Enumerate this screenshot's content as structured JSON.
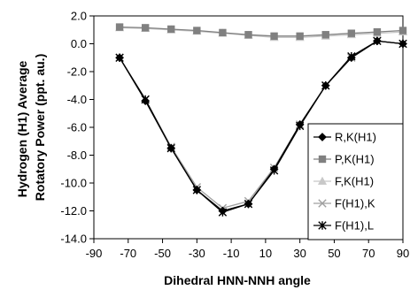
{
  "chart_data": {
    "type": "line",
    "title": "",
    "xlabel": "Dihedral HNN-NNH angle",
    "ylabel_lines": [
      "Hydrogen (H1) Average",
      "Rotatory Power (ppt. au.)"
    ],
    "xlim": [
      -90,
      90
    ],
    "ylim": [
      -14,
      2
    ],
    "x_ticks": [
      -90,
      -70,
      -50,
      -30,
      -10,
      10,
      30,
      50,
      70,
      90
    ],
    "y_ticks": [
      2,
      0,
      -2,
      -4,
      -6,
      -8,
      -10,
      -12,
      -14
    ],
    "y_tick_labels": [
      "2.0",
      "0.0",
      "-2.0",
      "-4.0",
      "-6.0",
      "-8.0",
      "-10.0",
      "-12.0",
      "-14.0"
    ],
    "grid": false,
    "legend": "right",
    "series": [
      {
        "name": "R,K(H1)",
        "color": "#000000",
        "marker": "diamond",
        "x": [
          -75,
          -60,
          -45,
          -30,
          -15,
          0,
          15,
          30,
          45,
          60,
          75,
          90
        ],
        "y": [
          -1.0,
          -4.1,
          -7.5,
          -10.5,
          -12.0,
          -11.5,
          -9.0,
          -5.8,
          -3.0,
          -1.0,
          0.2,
          0.0
        ]
      },
      {
        "name": "P,K(H1)",
        "color": "#808080",
        "marker": "square",
        "x": [
          -75,
          -60,
          -45,
          -30,
          -15,
          0,
          15,
          30,
          45,
          60,
          75,
          90
        ],
        "y": [
          1.2,
          1.15,
          1.05,
          0.95,
          0.8,
          0.65,
          0.55,
          0.55,
          0.65,
          0.75,
          0.85,
          0.95
        ]
      },
      {
        "name": "F,K(H1)",
        "color": "#c8c8c8",
        "marker": "triangle",
        "x": [
          -75,
          -60,
          -45,
          -30,
          -15,
          0,
          15,
          30,
          45,
          60,
          75,
          90
        ],
        "y": [
          1.15,
          1.1,
          1.0,
          0.9,
          0.75,
          0.6,
          0.45,
          0.45,
          0.55,
          0.65,
          0.75,
          0.85
        ]
      },
      {
        "name": "F(H1),K",
        "color": "#a0a0a0",
        "marker": "x",
        "x": [
          -75,
          -60,
          -45,
          -30,
          -15,
          0,
          15,
          30,
          45,
          60,
          75,
          90
        ],
        "y": [
          -1.0,
          -4.0,
          -7.4,
          -10.3,
          -11.8,
          -11.3,
          -8.9,
          -5.8,
          -3.0,
          -1.0,
          0.2,
          0.0
        ]
      },
      {
        "name": "F(H1),L",
        "color": "#000000",
        "marker": "star",
        "x": [
          -75,
          -60,
          -45,
          -30,
          -15,
          0,
          15,
          30,
          45,
          60,
          75,
          90
        ],
        "y": [
          -1.0,
          -4.0,
          -7.5,
          -10.5,
          -12.1,
          -11.5,
          -9.1,
          -5.9,
          -3.0,
          -0.9,
          0.2,
          0.0
        ]
      }
    ]
  }
}
